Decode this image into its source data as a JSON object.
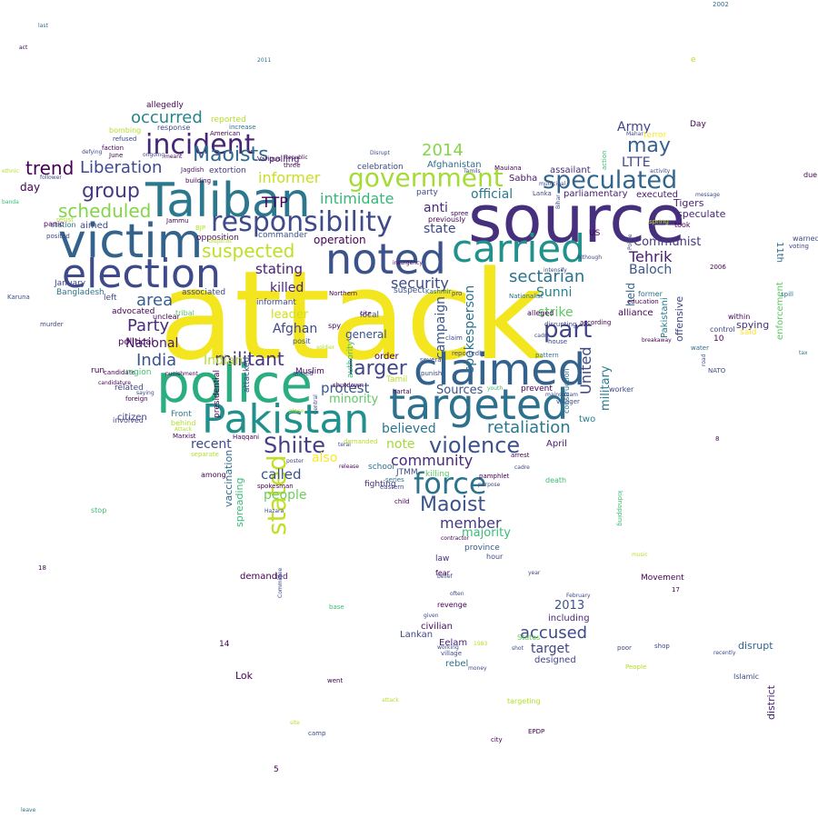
{
  "words": [
    {
      "text": "attack",
      "color": "#f3e51e"
    },
    {
      "text": "source",
      "color": "#462f7c"
    },
    {
      "text": "police",
      "color": "#2aae80"
    },
    {
      "text": "Taliban",
      "color": "#2b788e"
    },
    {
      "text": "victim",
      "color": "#33628d"
    },
    {
      "text": "claimed",
      "color": "#33628d"
    },
    {
      "text": "targeted",
      "color": "#2d718e"
    },
    {
      "text": "Pakistan",
      "color": "#21908d"
    },
    {
      "text": "election",
      "color": "#3e4a89"
    },
    {
      "text": "noted",
      "color": "#3b528b"
    },
    {
      "text": "carried",
      "color": "#21918c"
    },
    {
      "text": "responsibility",
      "color": "#3e4a89"
    },
    {
      "text": "incident",
      "color": "#482475"
    },
    {
      "text": "government",
      "color": "#a5db36"
    },
    {
      "text": "speculated",
      "color": "#32658e"
    },
    {
      "text": "stated",
      "color": "#c2df23"
    },
    {
      "text": "violence",
      "color": "#3b528b"
    },
    {
      "text": "force",
      "color": "#2c738e"
    },
    {
      "text": "Maoists",
      "color": "#306a8e"
    },
    {
      "text": "group",
      "color": "#443a83"
    },
    {
      "text": "part",
      "color": "#414487"
    },
    {
      "text": "Shiite",
      "color": "#433e85"
    },
    {
      "text": "Maoist",
      "color": "#3b528b"
    },
    {
      "text": "militant",
      "color": "#46337f"
    },
    {
      "text": "larger",
      "color": "#404688"
    },
    {
      "text": "may",
      "color": "#34618d"
    },
    {
      "text": "retaliation",
      "color": "#2a778e"
    },
    {
      "text": "suspected",
      "color": "#bddf26"
    },
    {
      "text": "scheduled",
      "color": "#84d44b"
    },
    {
      "text": "Liberation",
      "color": "#3e4989"
    },
    {
      "text": "trend",
      "color": "#440154"
    },
    {
      "text": "occurred",
      "color": "#25858e"
    },
    {
      "text": "2014",
      "color": "#86d549"
    },
    {
      "text": "India",
      "color": "#3a538b"
    },
    {
      "text": "Party",
      "color": "#472d7b"
    },
    {
      "text": "area",
      "color": "#355f8d"
    },
    {
      "text": "intimidate",
      "color": "#35b779"
    },
    {
      "text": "security",
      "color": "#3e4a89"
    },
    {
      "text": "sectarian",
      "color": "#2c728e"
    },
    {
      "text": "community",
      "color": "#472a7a"
    },
    {
      "text": "member",
      "color": "#453882"
    },
    {
      "text": "accused",
      "color": "#3e4a89"
    },
    {
      "text": "United",
      "color": "#3e4989"
    },
    {
      "text": "Tehrik",
      "color": "#481b6d"
    },
    {
      "text": "Army",
      "color": "#414487"
    },
    {
      "text": "LTTE",
      "color": "#404688"
    },
    {
      "text": "Baloch",
      "color": "#39568c"
    },
    {
      "text": "Communist",
      "color": "#453781"
    },
    {
      "text": "Sunni",
      "color": "#26828e"
    },
    {
      "text": "strike",
      "color": "#5ec962"
    },
    {
      "text": "TTP",
      "color": "#440154"
    },
    {
      "text": "informer",
      "color": "#c8e020"
    },
    {
      "text": "state",
      "color": "#3e4989"
    },
    {
      "text": "anti",
      "color": "#482878"
    },
    {
      "text": "official",
      "color": "#2a788e"
    },
    {
      "text": "protest",
      "color": "#39568c"
    },
    {
      "text": "stating",
      "color": "#481d6f"
    },
    {
      "text": "killed",
      "color": "#482475"
    },
    {
      "text": "spokesperson",
      "color": "#2c728e"
    },
    {
      "text": "campaign",
      "color": "#38598c"
    },
    {
      "text": "Afghan",
      "color": "#3f4788"
    },
    {
      "text": "leader",
      "color": "#d0e11c"
    },
    {
      "text": "Indian",
      "color": "#b5de2b"
    },
    {
      "text": "National",
      "color": "#481b6d"
    },
    {
      "text": "called",
      "color": "#3b528b"
    },
    {
      "text": "people",
      "color": "#6ccd5a"
    },
    {
      "text": "recent",
      "color": "#3e4a89"
    },
    {
      "text": "note",
      "color": "#a2da37"
    },
    {
      "text": "also",
      "color": "#fde725"
    },
    {
      "text": "believed",
      "color": "#2b758e"
    },
    {
      "text": "minority",
      "color": "#5ec962"
    },
    {
      "text": "Sources",
      "color": "#3a538b"
    },
    {
      "text": "military",
      "color": "#287c8e"
    },
    {
      "text": "majority",
      "color": "#3bbb75"
    },
    {
      "text": "target",
      "color": "#404588"
    },
    {
      "text": "2013",
      "color": "#3b528b"
    },
    {
      "text": "general",
      "color": "#3b528b"
    },
    {
      "text": "operation",
      "color": "#440154"
    },
    {
      "text": "speculate",
      "color": "#482878"
    },
    {
      "text": "Tigers",
      "color": "#481f70"
    },
    {
      "text": "held",
      "color": "#33628d"
    },
    {
      "text": "offensive",
      "color": "#3f4788"
    },
    {
      "text": "Pakistani",
      "color": "#2a788e"
    },
    {
      "text": "spying",
      "color": "#472f7d"
    },
    {
      "text": "11th",
      "color": "#31688e"
    },
    {
      "text": "enforcement",
      "color": "#5ec962"
    },
    {
      "text": "district",
      "color": "#482475"
    },
    {
      "text": "disrupt",
      "color": "#33638d"
    },
    {
      "text": "Afghanistan",
      "color": "#2d708e"
    },
    {
      "text": "civilian",
      "color": "#460b5e"
    },
    {
      "text": "Lankan",
      "color": "#404588"
    },
    {
      "text": "Eelam",
      "color": "#482475"
    },
    {
      "text": "rebel",
      "color": "#2c728e"
    },
    {
      "text": "designed",
      "color": "#404588"
    },
    {
      "text": "including",
      "color": "#482878"
    },
    {
      "text": "April",
      "color": "#481f70"
    },
    {
      "text": "two",
      "color": "#26828e"
    },
    {
      "text": "alliance",
      "color": "#440154"
    },
    {
      "text": "Sabha",
      "color": "#481769"
    },
    {
      "text": "assailant",
      "color": "#472e7c"
    },
    {
      "text": "executed",
      "color": "#481b6d"
    },
    {
      "text": "parliamentary",
      "color": "#482071"
    },
    {
      "text": "Jagdish",
      "color": "#471063"
    },
    {
      "text": "extortion",
      "color": "#453882"
    },
    {
      "text": "opposition",
      "color": "#470e61"
    },
    {
      "text": "vaccination",
      "color": "#2e6d8e"
    },
    {
      "text": "spreading",
      "color": "#3bbb75"
    },
    {
      "text": "Bangladesh",
      "color": "#2c738e"
    },
    {
      "text": "Karuna",
      "color": "#3e4c8a"
    },
    {
      "text": "Lok",
      "color": "#440154"
    },
    {
      "text": "aimed",
      "color": "#3e4989"
    },
    {
      "text": "candidate",
      "color": "#440154"
    },
    {
      "text": "political",
      "color": "#440154"
    },
    {
      "text": "advocated",
      "color": "#440154"
    },
    {
      "text": "related",
      "color": "#3e4989"
    },
    {
      "text": "citizen",
      "color": "#433e85"
    },
    {
      "text": "presidential",
      "color": "#440154"
    },
    {
      "text": "attacked",
      "color": "#3e4a89"
    },
    {
      "text": "informant",
      "color": "#3f4788"
    },
    {
      "text": "commander",
      "color": "#3b528b"
    },
    {
      "text": "polling",
      "color": "#481f70"
    },
    {
      "text": "Jammu",
      "color": "#440154"
    },
    {
      "text": "Muslim",
      "color": "#460b5e"
    },
    {
      "text": "Haqqani",
      "color": "#440154"
    },
    {
      "text": "Marxist",
      "color": "#440154"
    },
    {
      "text": "Front",
      "color": "#2a778e"
    },
    {
      "text": "demand",
      "color": "#440154"
    },
    {
      "text": "led",
      "color": "#481b6d"
    },
    {
      "text": "fighting",
      "color": "#46307e"
    },
    {
      "text": "school",
      "color": "#2c728e"
    },
    {
      "text": "JTMM",
      "color": "#3e4c8a"
    },
    {
      "text": "killing",
      "color": "#5ec962"
    },
    {
      "text": "pamphlet",
      "color": "#440154"
    },
    {
      "text": "province",
      "color": "#38598c"
    },
    {
      "text": "law",
      "color": "#46307e"
    },
    {
      "text": "hartal",
      "color": "#440154"
    },
    {
      "text": "posit",
      "color": "#3b528b"
    },
    {
      "text": "authority",
      "color": "#3bbb75"
    },
    {
      "text": "order",
      "color": "#440154"
    },
    {
      "text": "prevent",
      "color": "#440154"
    },
    {
      "text": "construction",
      "color": "#2c728e"
    },
    {
      "text": "pattern",
      "color": "#2a788e"
    },
    {
      "text": "States",
      "color": "#6ccd5a"
    },
    {
      "text": "Tamil",
      "color": "#b5de2b"
    },
    {
      "text": "spy",
      "color": "#440154"
    },
    {
      "text": "local",
      "color": "#3e4989"
    },
    {
      "text": "Nationalist",
      "color": "#2d708e"
    },
    {
      "text": "suspect",
      "color": "#3b528b"
    },
    {
      "text": "alleged",
      "color": "#440154"
    },
    {
      "text": "celebration",
      "color": "#3e4989"
    },
    {
      "text": "party",
      "color": "#3e4989"
    },
    {
      "text": "left",
      "color": "#3e4989"
    },
    {
      "text": "January",
      "color": "#3e4989"
    },
    {
      "text": "unclear",
      "color": "#440154"
    },
    {
      "text": "associated",
      "color": "#3e4989"
    },
    {
      "text": "tribal",
      "color": "#5ec962"
    },
    {
      "text": "region",
      "color": "#3bbb75"
    },
    {
      "text": "run",
      "color": "#440154"
    },
    {
      "text": "station",
      "color": "#2c728e"
    },
    {
      "text": "panic",
      "color": "#440154"
    },
    {
      "text": "posited",
      "color": "#3e4989"
    },
    {
      "text": "murder",
      "color": "#3e4989"
    },
    {
      "text": "day",
      "color": "#440154"
    },
    {
      "text": "allegedly",
      "color": "#440154"
    },
    {
      "text": "reported",
      "color": "#b5de2b"
    },
    {
      "text": "bombing",
      "color": "#b5de2b"
    },
    {
      "text": "response",
      "color": "#3e4989"
    },
    {
      "text": "June",
      "color": "#440154"
    },
    {
      "text": "foreign",
      "color": "#440154"
    },
    {
      "text": "behind",
      "color": "#b5de2b"
    },
    {
      "text": "involved",
      "color": "#3e4989"
    },
    {
      "text": "among",
      "color": "#440154"
    },
    {
      "text": "Day",
      "color": "#440154"
    },
    {
      "text": "10",
      "color": "#440154"
    },
    {
      "text": "said",
      "color": "#fde725"
    },
    {
      "text": "US",
      "color": "#440154"
    },
    {
      "text": "cite",
      "color": "#440154"
    },
    {
      "text": "according",
      "color": "#440154"
    },
    {
      "text": "Movement",
      "color": "#440154"
    },
    {
      "text": "2006",
      "color": "#440154"
    },
    {
      "text": "14",
      "color": "#440154"
    },
    {
      "text": "17",
      "color": "#440154"
    },
    {
      "text": "5",
      "color": "#440154"
    },
    {
      "text": "18",
      "color": "#440154"
    },
    {
      "text": "Islamic",
      "color": "#3e4989"
    },
    {
      "text": "control",
      "color": "#3e4989"
    },
    {
      "text": "water",
      "color": "#2c728e"
    },
    {
      "text": "NATO",
      "color": "#3e4989"
    },
    {
      "text": "within",
      "color": "#440154"
    },
    {
      "text": "terror",
      "color": "#fde725"
    },
    {
      "text": "took",
      "color": "#440154"
    },
    {
      "text": "education",
      "color": "#440154"
    },
    {
      "text": "former",
      "color": "#2c728e"
    },
    {
      "text": "worker",
      "color": "#3e4989"
    },
    {
      "text": "death",
      "color": "#3bbb75"
    },
    {
      "text": "arrest",
      "color": "#440154"
    },
    {
      "text": "village",
      "color": "#3e4989"
    },
    {
      "text": "hour",
      "color": "#3e4989"
    },
    {
      "text": "fear",
      "color": "#440154"
    },
    {
      "text": "revenge",
      "color": "#440154"
    },
    {
      "text": "stop",
      "color": "#3bbb75"
    },
    {
      "text": "EPDP",
      "color": "#440154"
    },
    {
      "text": "went",
      "color": "#440154"
    },
    {
      "text": "camp",
      "color": "#3e4989"
    },
    {
      "text": "city",
      "color": "#440154"
    },
    {
      "text": "targeting",
      "color": "#b5de2b"
    },
    {
      "text": "kidnapping",
      "color": "#3bbb75"
    },
    {
      "text": "People",
      "color": "#b5de2b"
    },
    {
      "text": "poor",
      "color": "#3e4989"
    },
    {
      "text": "shop",
      "color": "#3e4989"
    },
    {
      "text": "due",
      "color": "#440154"
    },
    {
      "text": "warned",
      "color": "#3e4989"
    },
    {
      "text": "voting",
      "color": "#3e4989"
    },
    {
      "text": "spill",
      "color": "#2c728e"
    },
    {
      "text": "act",
      "color": "#440154"
    },
    {
      "text": "last",
      "color": "#2c728e"
    },
    {
      "text": "2002",
      "color": "#2c728e"
    },
    {
      "text": "e",
      "color": "#b5de2b"
    },
    {
      "text": "year",
      "color": "#3e4989"
    },
    {
      "text": "February",
      "color": "#3e4989"
    },
    {
      "text": "music",
      "color": "#b5de2b"
    },
    {
      "text": "Committee",
      "color": "#3e4989"
    },
    {
      "text": "base",
      "color": "#3bbb75"
    },
    {
      "text": "given",
      "color": "#3e4989"
    },
    {
      "text": "working",
      "color": "#3e4989"
    },
    {
      "text": "money",
      "color": "#3e4989"
    },
    {
      "text": "series",
      "color": "#2c728e"
    },
    {
      "text": "eastern",
      "color": "#3e4989"
    },
    {
      "text": "spokesman",
      "color": "#440154"
    },
    {
      "text": "Hazara",
      "color": "#3e4989"
    },
    {
      "text": "separate",
      "color": "#b5de2b"
    },
    {
      "text": "Gujarat",
      "color": "#b5de2b"
    },
    {
      "text": "BJP",
      "color": "#b5de2b"
    },
    {
      "text": "Attack",
      "color": "#b5de2b"
    },
    {
      "text": "shutdown",
      "color": "#440154"
    },
    {
      "text": "release",
      "color": "#440154"
    },
    {
      "text": "demanded",
      "color": "#b5de2b"
    },
    {
      "text": "place",
      "color": "#b5de2b"
    },
    {
      "text": "armed",
      "color": "#3e4989"
    },
    {
      "text": "several",
      "color": "#3e4989"
    },
    {
      "text": "punish",
      "color": "#3e4989"
    },
    {
      "text": "claim",
      "color": "#3e4989"
    },
    {
      "text": "reportedly",
      "color": "#3e4989"
    },
    {
      "text": "mainstream",
      "color": "#3e4989"
    },
    {
      "text": "villager",
      "color": "#3e4989"
    },
    {
      "text": "disrupting",
      "color": "#3e4989"
    },
    {
      "text": "cadre",
      "color": "#3e4989"
    },
    {
      "text": "house",
      "color": "#3e4989"
    },
    {
      "text": "previously",
      "color": "#440154"
    },
    {
      "text": "spree",
      "color": "#440154"
    },
    {
      "text": "Kashmir",
      "color": "#2c728e"
    },
    {
      "text": "pro",
      "color": "#3e4989"
    },
    {
      "text": "Northern",
      "color": "#440154"
    },
    {
      "text": "Mauiana",
      "color": "#440154"
    },
    {
      "text": "Lanka",
      "color": "#3e4989"
    },
    {
      "text": "faction",
      "color": "#440154"
    },
    {
      "text": "candidature",
      "color": "#440154"
    },
    {
      "text": "punishment",
      "color": "#440154"
    },
    {
      "text": "saying",
      "color": "#3e4989"
    },
    {
      "text": "Various",
      "color": "#440154"
    },
    {
      "text": "Republic",
      "color": "#440154"
    },
    {
      "text": "three",
      "color": "#440154"
    },
    {
      "text": "increase",
      "color": "#2c728e"
    },
    {
      "text": "American",
      "color": "#440154"
    },
    {
      "text": "refused",
      "color": "#3e4989"
    },
    {
      "text": "ongoing",
      "color": "#3e4989"
    },
    {
      "text": "defying",
      "color": "#3e4989"
    },
    {
      "text": "meant",
      "color": "#440154"
    },
    {
      "text": "building",
      "color": "#440154"
    },
    {
      "text": "resist",
      "color": "#b5de2b"
    },
    {
      "text": "follower",
      "color": "#3e4989"
    },
    {
      "text": "ethnic",
      "color": "#b5de2b"
    },
    {
      "text": "banda",
      "color": "#3bbb75"
    },
    {
      "text": "2011",
      "color": "#2c728e"
    },
    {
      "text": "Disrupt",
      "color": "#3e4989"
    },
    {
      "text": "action",
      "color": "#3bbb75"
    },
    {
      "text": "activity",
      "color": "#3e4989"
    },
    {
      "text": "message",
      "color": "#3e4989"
    },
    {
      "text": "spring",
      "color": "#b5de2b"
    },
    {
      "text": "Police",
      "color": "#3e4989"
    },
    {
      "text": "Mahar",
      "color": "#3e4989"
    },
    {
      "text": "Bihar",
      "color": "#3e4989"
    },
    {
      "text": "breakaway",
      "color": "#440154"
    },
    {
      "text": "Although",
      "color": "#3e4989"
    },
    {
      "text": "intensify",
      "color": "#3e4989"
    },
    {
      "text": "municipal",
      "color": "#3e4989"
    },
    {
      "text": "Tamils",
      "color": "#3e4989"
    },
    {
      "text": "insurgency",
      "color": "#440154"
    },
    {
      "text": "soldier",
      "color": "#b5de2b"
    },
    {
      "text": "Central",
      "color": "#3e4989"
    },
    {
      "text": "terai",
      "color": "#3e4989"
    },
    {
      "text": "poster",
      "color": "#3e4989"
    },
    {
      "text": "child",
      "color": "#440154"
    },
    {
      "text": "contractor",
      "color": "#440154"
    },
    {
      "text": "purpose",
      "color": "#3e4989"
    },
    {
      "text": "youth",
      "color": "#3bbb75"
    },
    {
      "text": "belief",
      "color": "#3e4989"
    },
    {
      "text": "often",
      "color": "#3e4989"
    },
    {
      "text": "shot",
      "color": "#3e4989"
    },
    {
      "text": "1983",
      "color": "#b5de2b"
    },
    {
      "text": "tax",
      "color": "#2c728e"
    },
    {
      "text": "cadre",
      "color": "#3e4989"
    },
    {
      "text": "road",
      "color": "#3e4989"
    },
    {
      "text": "recently",
      "color": "#3e4989"
    },
    {
      "text": "site",
      "color": "#b5de2b"
    },
    {
      "text": "attack",
      "color": "#b5de2b"
    },
    {
      "text": "leave",
      "color": "#2c728e"
    },
    {
      "text": "8",
      "color": "#440154"
    }
  ]
}
